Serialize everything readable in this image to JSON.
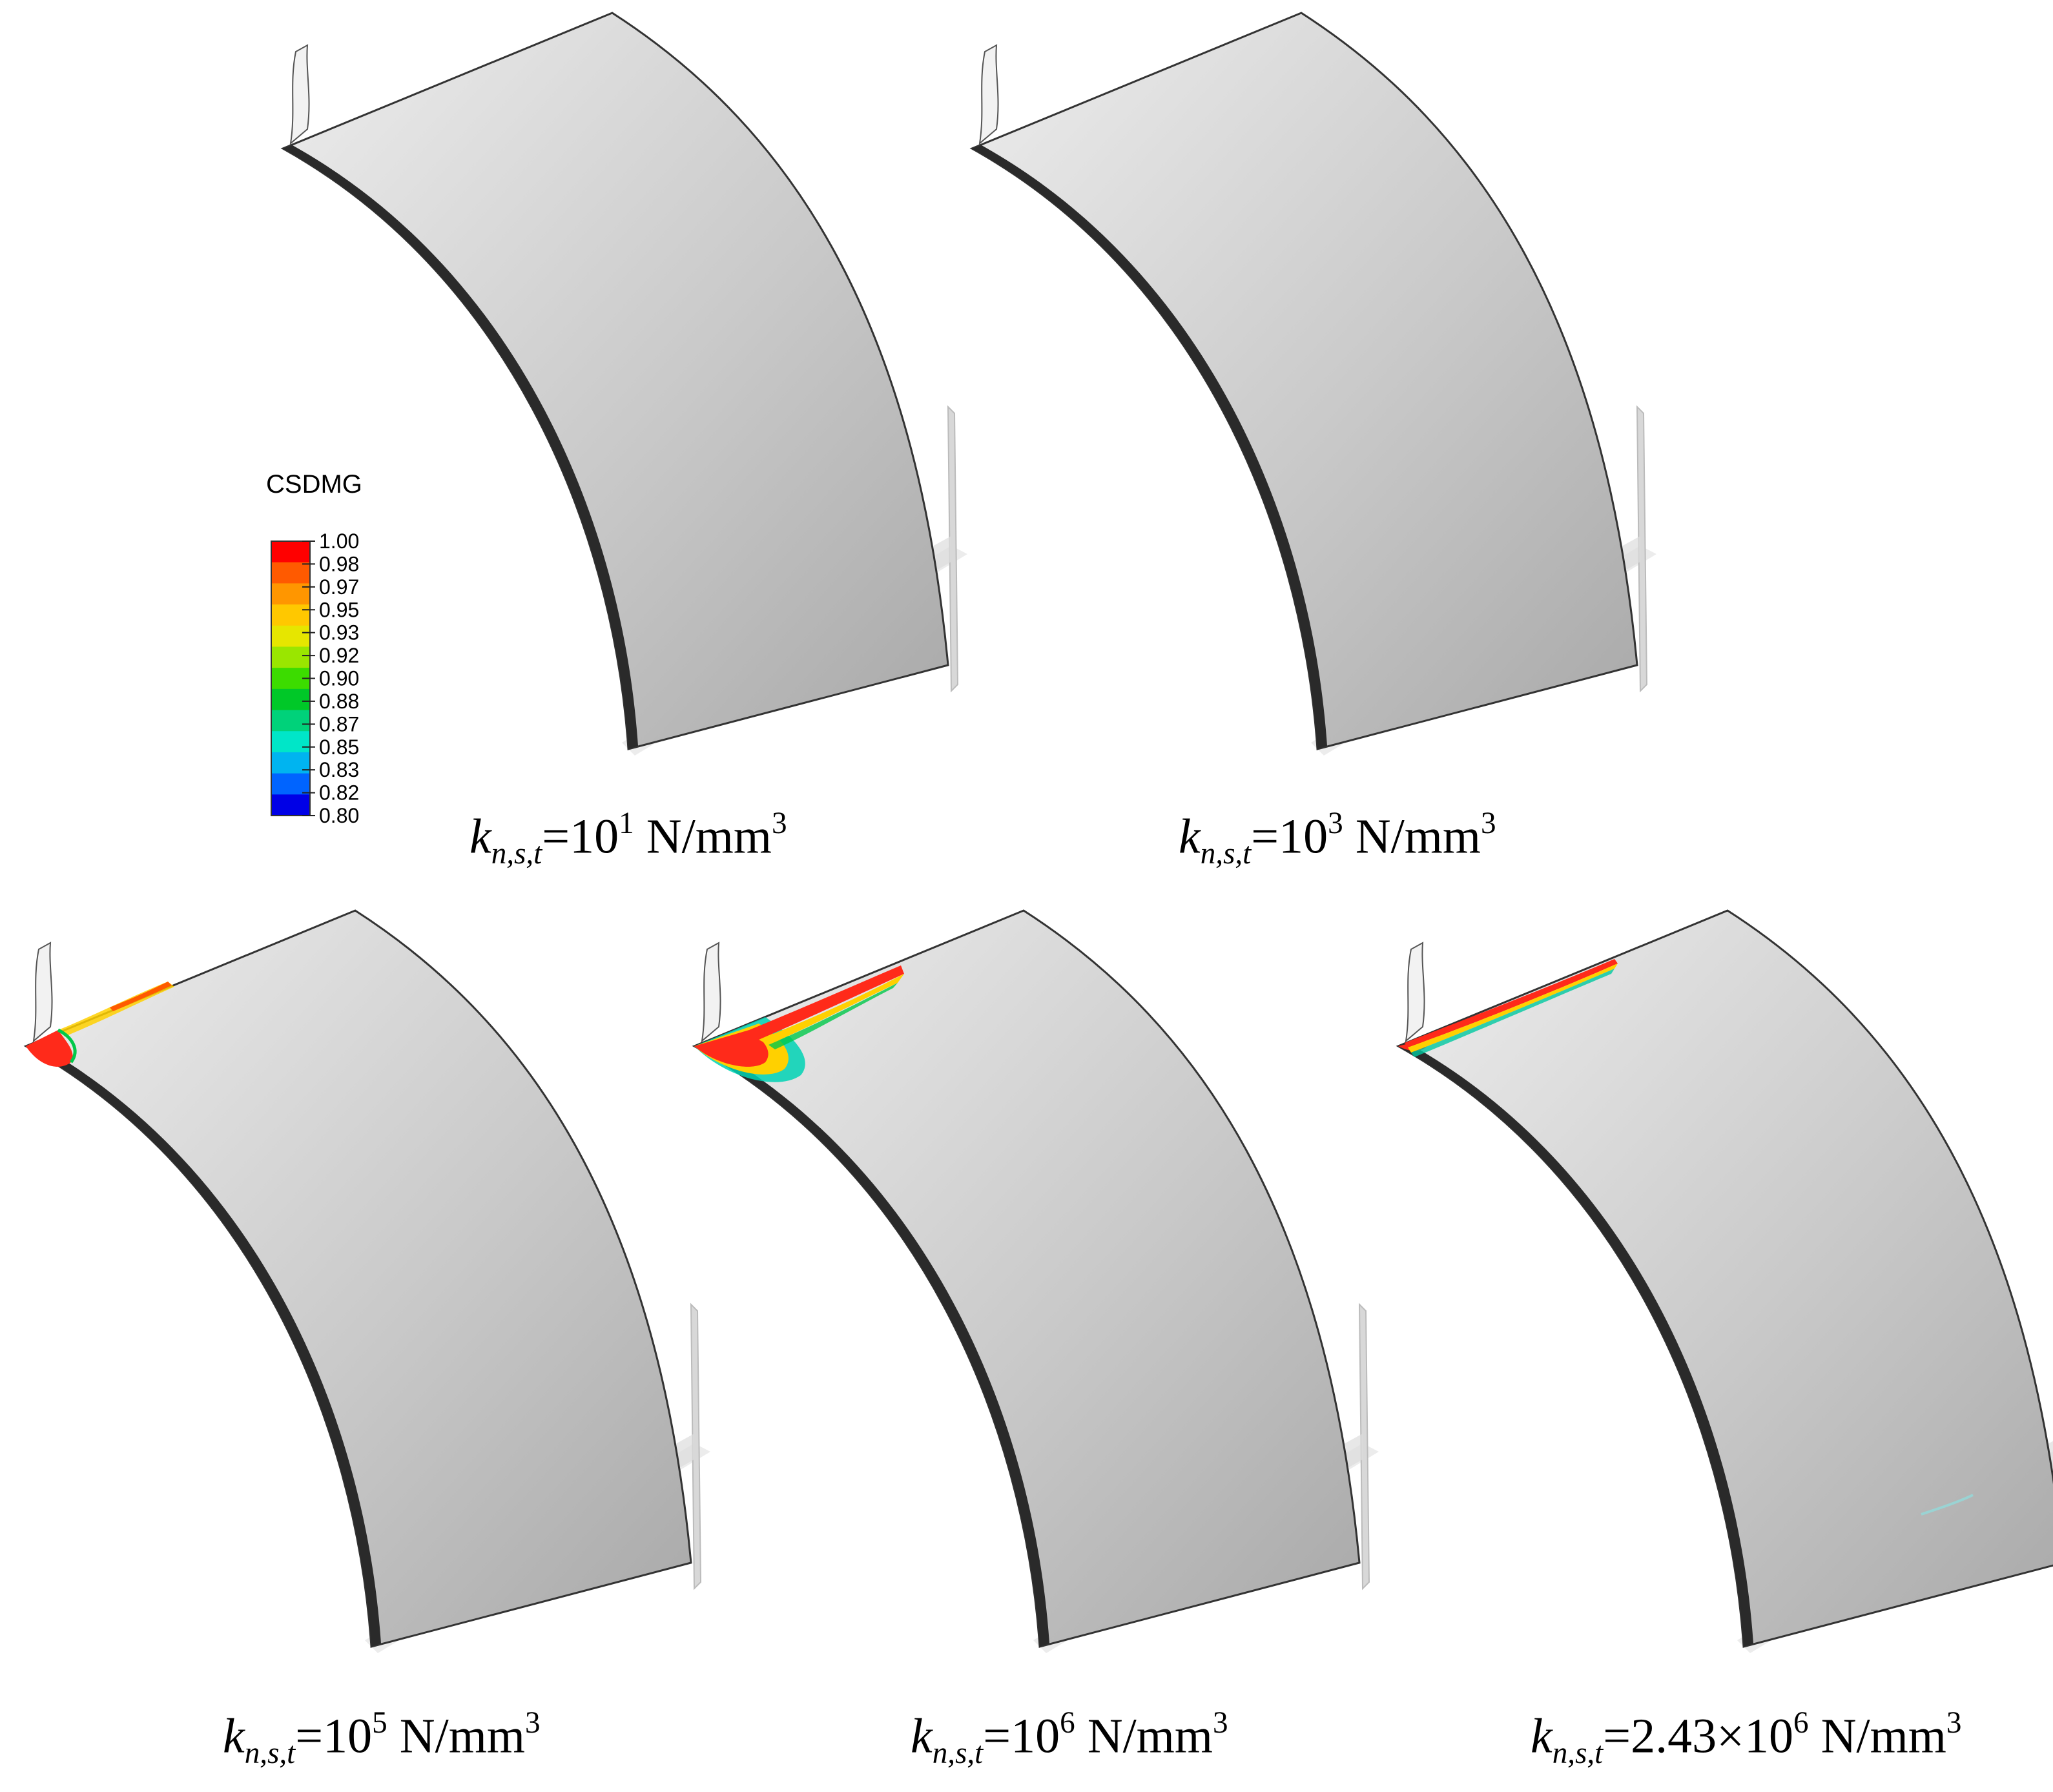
{
  "legend": {
    "title": "CSDMG",
    "ticks": [
      "1.00",
      "0.98",
      "0.97",
      "0.95",
      "0.93",
      "0.92",
      "0.90",
      "0.88",
      "0.87",
      "0.85",
      "0.83",
      "0.82",
      "0.80"
    ],
    "colors": [
      "#ff0000",
      "#ff5a00",
      "#ff9600",
      "#ffc800",
      "#e6e600",
      "#9ae600",
      "#3cdc00",
      "#00c828",
      "#00d27a",
      "#00e6c8",
      "#00b4f0",
      "#0064ff",
      "#0000e6"
    ]
  },
  "panels": [
    {
      "k_base": "10",
      "k_exp": "1",
      "k_mult": "",
      "unit": " N/mm",
      "unit_exp": "3",
      "damage": "none"
    },
    {
      "k_base": "10",
      "k_exp": "3",
      "k_mult": "",
      "unit": " N/mm",
      "unit_exp": "3",
      "damage": "none"
    },
    {
      "k_base": "10",
      "k_exp": "5",
      "k_mult": "",
      "unit": " N/mm",
      "unit_exp": "3",
      "damage": "small"
    },
    {
      "k_base": "10",
      "k_exp": "6",
      "k_mult": "",
      "unit": " N/mm",
      "unit_exp": "3",
      "damage": "large"
    },
    {
      "k_base": "10",
      "k_exp": "6",
      "k_mult": "2.43×",
      "unit": " N/mm",
      "unit_exp": "3",
      "damage": "stripe"
    }
  ],
  "symbol": {
    "k": "k",
    "sub": "n,s,t",
    "eq": "="
  }
}
